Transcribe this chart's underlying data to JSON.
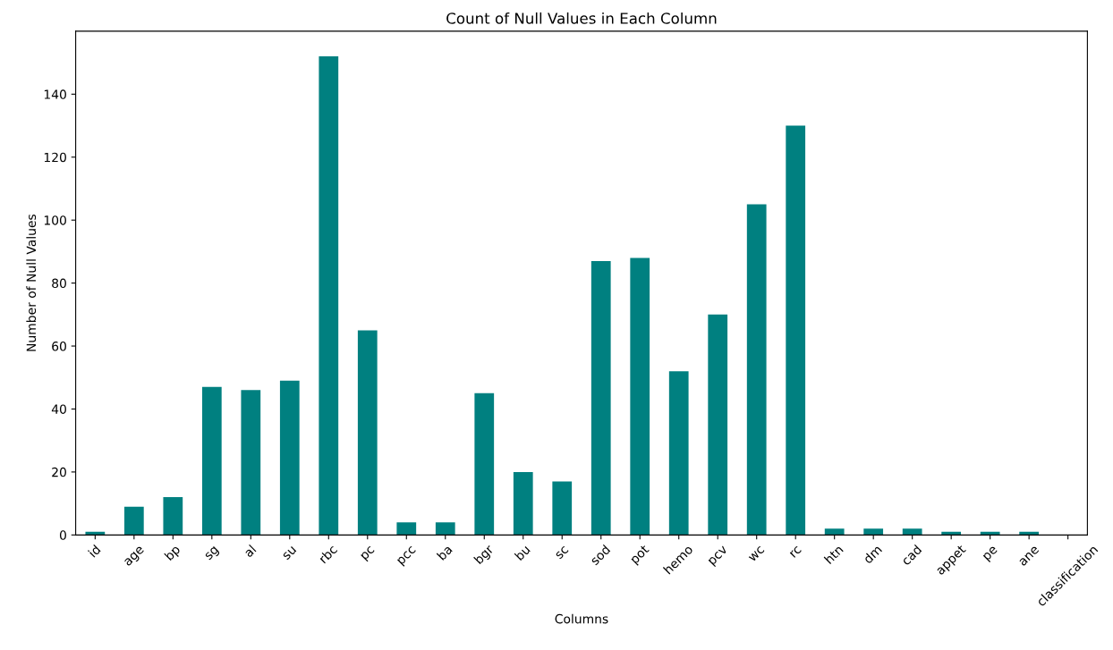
{
  "chart_data": {
    "type": "bar",
    "title": "Count of Null Values in Each Column",
    "xlabel": "Columns",
    "ylabel": "Number of Null Values",
    "categories": [
      "id",
      "age",
      "bp",
      "sg",
      "al",
      "su",
      "rbc",
      "pc",
      "pcc",
      "ba",
      "bgr",
      "bu",
      "sc",
      "sod",
      "pot",
      "hemo",
      "pcv",
      "wc",
      "rc",
      "htn",
      "dm",
      "cad",
      "appet",
      "pe",
      "ane",
      "classification"
    ],
    "values": [
      1,
      9,
      12,
      47,
      46,
      49,
      152,
      65,
      4,
      4,
      45,
      20,
      17,
      87,
      88,
      52,
      70,
      105,
      130,
      2,
      2,
      2,
      1,
      1,
      1,
      0
    ],
    "color": "#008080",
    "ylim": [
      0,
      160
    ],
    "yticks": [
      0,
      20,
      40,
      60,
      80,
      100,
      120,
      140
    ],
    "grid": false,
    "legend": false
  }
}
